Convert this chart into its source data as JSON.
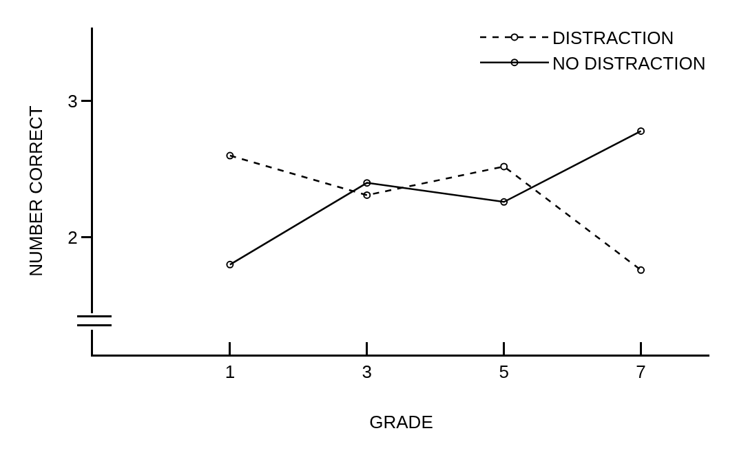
{
  "chart_data": {
    "type": "line",
    "xlabel": "GRADE",
    "ylabel": "NUMBER CORRECT",
    "x": [
      1,
      3,
      5,
      7
    ],
    "series": [
      {
        "name": "DISTRACTION",
        "color": "#000000",
        "line_style": "dashed",
        "values": [
          2.6,
          2.31,
          2.52,
          1.76
        ]
      },
      {
        "name": "NO DISTRACTION",
        "color": "#000000",
        "line_style": "solid",
        "values": [
          1.8,
          2.4,
          2.26,
          2.78
        ]
      }
    ],
    "xlim": [
      -1,
      8
    ],
    "xticks": [
      1,
      3,
      5,
      7
    ],
    "ylim": [
      1.14,
      3.54
    ],
    "yticks": [
      2,
      3
    ],
    "grid": false,
    "legend": "top right",
    "marker": "circle"
  }
}
